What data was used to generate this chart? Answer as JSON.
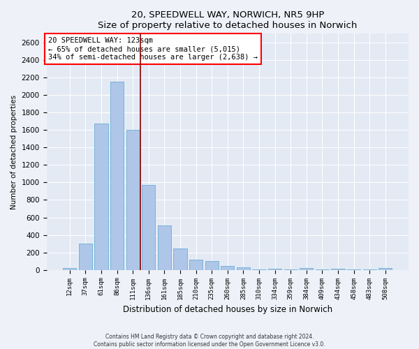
{
  "title1": "20, SPEEDWELL WAY, NORWICH, NR5 9HP",
  "title2": "Size of property relative to detached houses in Norwich",
  "xlabel": "Distribution of detached houses by size in Norwich",
  "ylabel": "Number of detached properties",
  "categories": [
    "12sqm",
    "37sqm",
    "61sqm",
    "86sqm",
    "111sqm",
    "136sqm",
    "161sqm",
    "185sqm",
    "210sqm",
    "235sqm",
    "260sqm",
    "285sqm",
    "310sqm",
    "334sqm",
    "359sqm",
    "384sqm",
    "409sqm",
    "434sqm",
    "458sqm",
    "483sqm",
    "508sqm"
  ],
  "values": [
    20,
    300,
    1670,
    2150,
    1600,
    970,
    510,
    245,
    120,
    100,
    45,
    30,
    5,
    10,
    5,
    20,
    5,
    15,
    5,
    5,
    20
  ],
  "bar_color": "#aec6e8",
  "bar_edge_color": "#6aaed6",
  "vline_x_index": 4,
  "vline_color": "#8b0000",
  "annotation_text": "20 SPEEDWELL WAY: 123sqm\n← 65% of detached houses are smaller (5,015)\n34% of semi-detached houses are larger (2,638) →",
  "annotation_box_color": "white",
  "annotation_box_edge_color": "red",
  "ylim": [
    0,
    2700
  ],
  "yticks": [
    0,
    200,
    400,
    600,
    800,
    1000,
    1200,
    1400,
    1600,
    1800,
    2000,
    2200,
    2400,
    2600
  ],
  "footer1": "Contains HM Land Registry data © Crown copyright and database right 2024.",
  "footer2": "Contains public sector information licensed under the Open Government Licence v3.0.",
  "bg_color": "#eef2f8",
  "plot_bg_color": "#e4eaf4"
}
